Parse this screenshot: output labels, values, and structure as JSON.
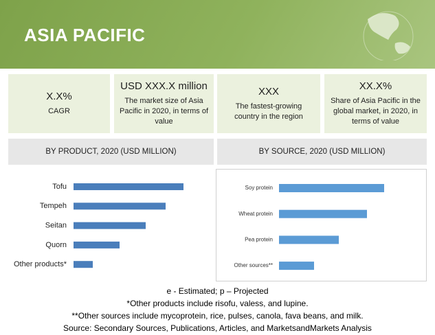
{
  "header": {
    "title": "ASIA PACIFIC"
  },
  "stats": [
    {
      "value": "X.X%",
      "label": "CAGR"
    },
    {
      "value": "USD XXX.X million",
      "label": "The market size of Asia Pacific in 2020, in terms of value"
    },
    {
      "value": "XXX",
      "label": "The fastest-growing country in the region"
    },
    {
      "value": "XX.X%",
      "label": "Share of Asia Pacific in the global market, in 2020, in terms of value"
    }
  ],
  "chart_data": [
    {
      "type": "bar",
      "title": "BY PRODUCT, 2020 (USD MILLION)",
      "categories": [
        "Tofu",
        "Tempeh",
        "Seitan",
        "Quorn",
        "Other products*"
      ],
      "values": [
        160,
        134,
        105,
        67,
        28
      ],
      "color": "#4a7ebb"
    },
    {
      "type": "bar",
      "title": "BY SOURCE, 2020 (USD MILLION)",
      "categories": [
        "Soy protein",
        "Wheat protein",
        "Pea protein",
        "Other sources**"
      ],
      "values": [
        153,
        128,
        87,
        51
      ],
      "color": "#5b9bd5"
    }
  ],
  "footnotes": [
    "e - Estimated; p – Projected",
    "*Other products include risofu, valess, and lupine.",
    "**Other sources include mycoprotein, rice, pulses, canola, fava beans, and milk.",
    "Source: Secondary Sources, Publications, Articles, and MarketsandMarkets Analysis"
  ]
}
